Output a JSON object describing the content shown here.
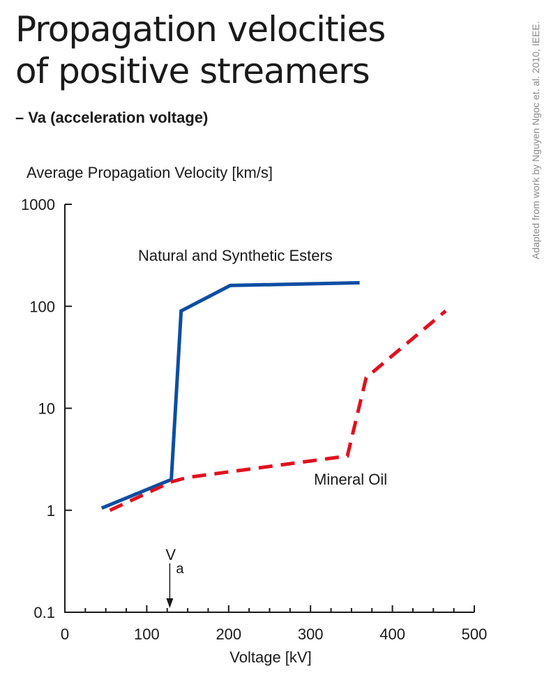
{
  "page": {
    "title_line1": "Propagation velocities",
    "title_line2": "of positive streamers",
    "subtitle": "– Va (acceleration voltage)",
    "credit": "Adapted from work by Nguyen Ngoc et. al. 2010, IEEE."
  },
  "chart_data": {
    "type": "line",
    "ylabel": "Average Propagation Velocity [km/s]",
    "xlabel": "Voltage [kV]",
    "xlim": [
      0,
      500
    ],
    "ylim": [
      0.1,
      1000
    ],
    "yscale": "log",
    "x_ticks": [
      0,
      100,
      200,
      300,
      400,
      500
    ],
    "x_tick_labels": [
      "0",
      "100",
      "200",
      "300",
      "400",
      "500"
    ],
    "y_ticks": [
      0.1,
      1,
      10,
      100,
      1000
    ],
    "y_tick_labels": [
      "0.1",
      "1",
      "10",
      "100",
      "1000"
    ],
    "grid": false,
    "legend": "none",
    "series": [
      {
        "name": "Natural and Synthetic Esters",
        "color": "#0b4ea2",
        "style": "solid",
        "x": [
          45,
          130,
          142,
          202,
          360
        ],
        "y": [
          1.05,
          2.0,
          90,
          160,
          170
        ]
      },
      {
        "name": "Mineral Oil",
        "color": "#e0101e",
        "style": "dashed",
        "x": [
          55,
          130,
          150,
          345,
          368,
          465
        ],
        "y": [
          1.0,
          1.9,
          2.1,
          3.4,
          20,
          90
        ]
      }
    ],
    "annotations": [
      {
        "text": "V",
        "sub": "a",
        "x": 123,
        "type": "arrow-down"
      }
    ]
  }
}
